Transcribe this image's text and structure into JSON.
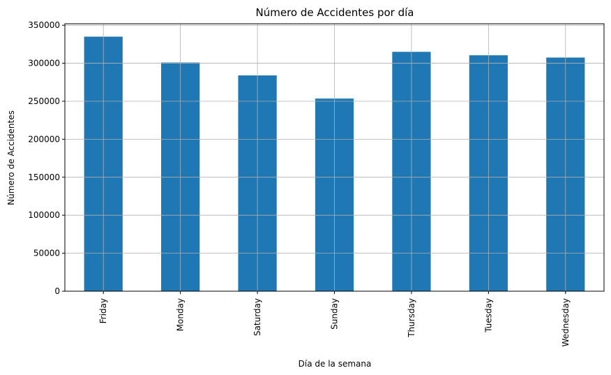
{
  "chart_data": {
    "type": "bar",
    "title": "Número de Accidentes por día",
    "xlabel": "Día de la semana",
    "ylabel": "Número de Accidentes",
    "categories": [
      "Friday",
      "Monday",
      "Saturday",
      "Sunday",
      "Thursday",
      "Tuesday",
      "Wednesday"
    ],
    "values": [
      335000,
      301000,
      284000,
      253500,
      315000,
      310500,
      307500
    ],
    "ylim": [
      0,
      352000
    ],
    "yticks": [
      0,
      50000,
      100000,
      150000,
      200000,
      250000,
      300000,
      350000
    ],
    "grid": true,
    "bar_color": "#1f77b4"
  }
}
